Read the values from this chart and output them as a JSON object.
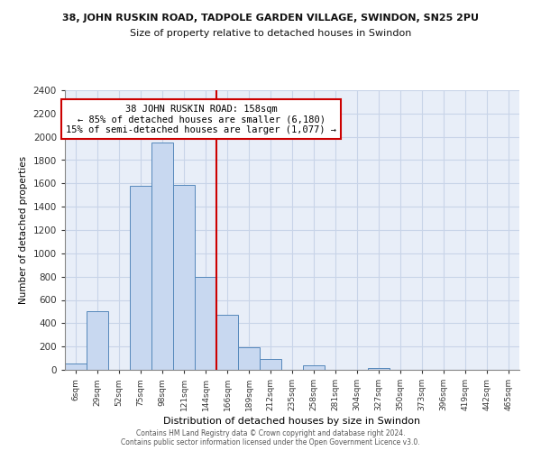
{
  "title_main": "38, JOHN RUSKIN ROAD, TADPOLE GARDEN VILLAGE, SWINDON, SN25 2PU",
  "title_sub": "Size of property relative to detached houses in Swindon",
  "xlabel": "Distribution of detached houses by size in Swindon",
  "ylabel": "Number of detached properties",
  "bar_labels": [
    "6sqm",
    "29sqm",
    "52sqm",
    "75sqm",
    "98sqm",
    "121sqm",
    "144sqm",
    "166sqm",
    "189sqm",
    "212sqm",
    "235sqm",
    "258sqm",
    "281sqm",
    "304sqm",
    "327sqm",
    "350sqm",
    "373sqm",
    "396sqm",
    "419sqm",
    "442sqm",
    "465sqm"
  ],
  "bar_values": [
    55,
    500,
    0,
    1580,
    1950,
    1590,
    800,
    470,
    190,
    95,
    0,
    35,
    0,
    0,
    18,
    0,
    0,
    0,
    0,
    0,
    0
  ],
  "bar_color": "#c8d8f0",
  "bar_edge_color": "#5588bb",
  "vline_x": 7.5,
  "vline_color": "#cc0000",
  "annotation_text": "38 JOHN RUSKIN ROAD: 158sqm\n← 85% of detached houses are smaller (6,180)\n15% of semi-detached houses are larger (1,077) →",
  "annotation_box_edge": "#cc0000",
  "annotation_box_face": "#ffffff",
  "ylim": [
    0,
    2400
  ],
  "yticks": [
    0,
    200,
    400,
    600,
    800,
    1000,
    1200,
    1400,
    1600,
    1800,
    2000,
    2200,
    2400
  ],
  "footer1": "Contains HM Land Registry data © Crown copyright and database right 2024.",
  "footer2": "Contains public sector information licensed under the Open Government Licence v3.0.",
  "background_color": "#ffffff",
  "grid_color": "#c8d4e8",
  "plot_bg_color": "#e8eef8"
}
